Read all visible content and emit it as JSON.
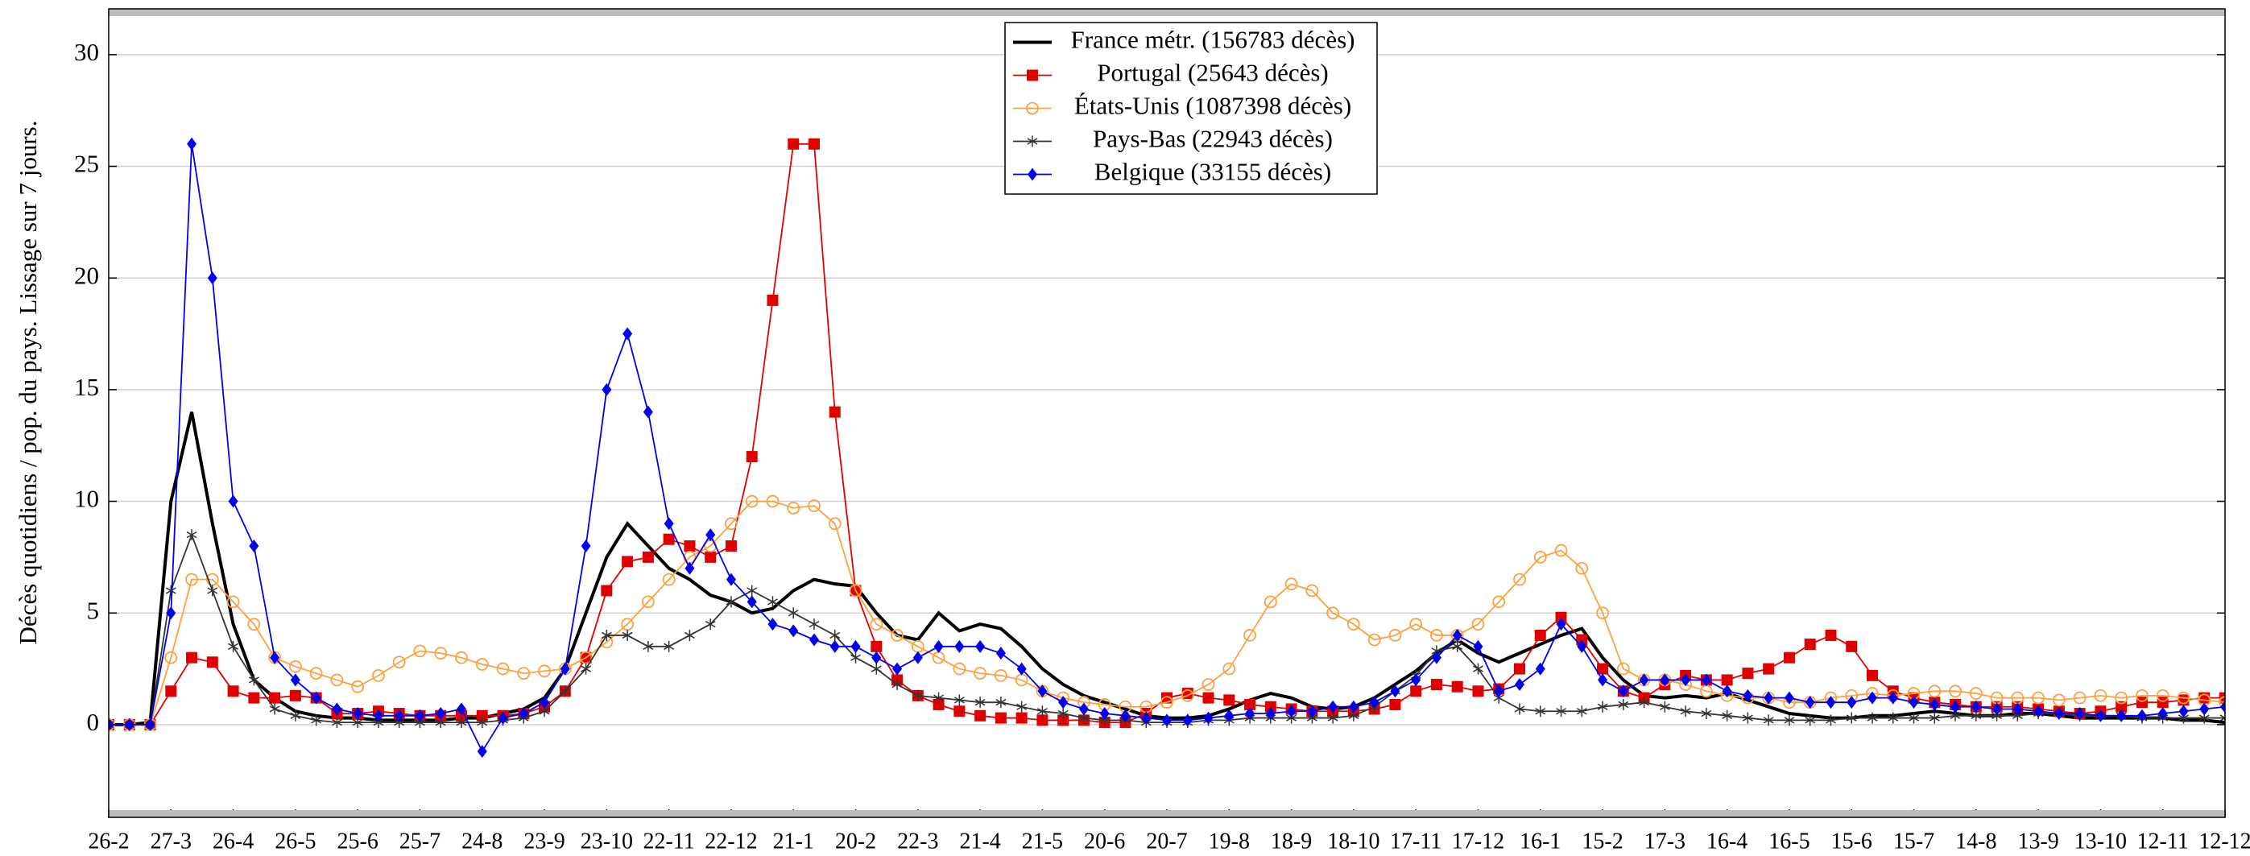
{
  "chart_data": {
    "type": "line",
    "y_label": "Décès quotidiens / pop. du pays. Lissage sur 7 jours.",
    "x": [
      0,
      10,
      20,
      30,
      40,
      50,
      60,
      70,
      80,
      90,
      100,
      110,
      120,
      130,
      140,
      150,
      160,
      170,
      180,
      190,
      200,
      210,
      220,
      230,
      240,
      250,
      260,
      270,
      280,
      290,
      300,
      310,
      320,
      330,
      340,
      350,
      360,
      370,
      380,
      390,
      400,
      410,
      420,
      430,
      440,
      450,
      460,
      470,
      480,
      490,
      500,
      510,
      520,
      530,
      540,
      550,
      560,
      570,
      580,
      590,
      600,
      610,
      620,
      630,
      640,
      650,
      660,
      670,
      680,
      690,
      700,
      710,
      720,
      730,
      740,
      750,
      760,
      770,
      780,
      790,
      800,
      810,
      820,
      830,
      840,
      850,
      860,
      870,
      880,
      890,
      900,
      910,
      920,
      930,
      940,
      950,
      960,
      970,
      980,
      990,
      1000,
      1010,
      1020
    ],
    "xlim": [
      0,
      1020
    ],
    "xticks": [
      {
        "value": 0,
        "label": "26-2"
      },
      {
        "value": 30,
        "label": "27-3"
      },
      {
        "value": 60,
        "label": "26-4"
      },
      {
        "value": 90,
        "label": "26-5"
      },
      {
        "value": 120,
        "label": "25-6"
      },
      {
        "value": 150,
        "label": "25-7"
      },
      {
        "value": 180,
        "label": "24-8"
      },
      {
        "value": 210,
        "label": "23-9"
      },
      {
        "value": 240,
        "label": "23-10"
      },
      {
        "value": 270,
        "label": "22-11"
      },
      {
        "value": 300,
        "label": "22-12"
      },
      {
        "value": 330,
        "label": "21-1"
      },
      {
        "value": 360,
        "label": "20-2"
      },
      {
        "value": 390,
        "label": "22-3"
      },
      {
        "value": 420,
        "label": "21-4"
      },
      {
        "value": 450,
        "label": "21-5"
      },
      {
        "value": 480,
        "label": "20-6"
      },
      {
        "value": 510,
        "label": "20-7"
      },
      {
        "value": 540,
        "label": "19-8"
      },
      {
        "value": 570,
        "label": "18-9"
      },
      {
        "value": 600,
        "label": "18-10"
      },
      {
        "value": 630,
        "label": "17-11"
      },
      {
        "value": 660,
        "label": "17-12"
      },
      {
        "value": 690,
        "label": "16-1"
      },
      {
        "value": 720,
        "label": "15-2"
      },
      {
        "value": 750,
        "label": "17-3"
      },
      {
        "value": 780,
        "label": "16-4"
      },
      {
        "value": 810,
        "label": "16-5"
      },
      {
        "value": 840,
        "label": "15-6"
      },
      {
        "value": 870,
        "label": "15-7"
      },
      {
        "value": 900,
        "label": "14-8"
      },
      {
        "value": 930,
        "label": "13-9"
      },
      {
        "value": 960,
        "label": "13-10"
      },
      {
        "value": 990,
        "label": "12-11"
      },
      {
        "value": 1020,
        "label": "12-12"
      }
    ],
    "ylim": [
      -4.15,
      32.05
    ],
    "yticks": [
      0,
      5,
      10,
      15,
      20,
      25,
      30
    ],
    "grid": true,
    "legend": "top-center",
    "series": [
      {
        "name": "France métr. (156783 décès)",
        "color": "#000000",
        "marker": "none",
        "values": [
          0,
          0,
          0.1,
          10,
          14,
          9,
          4.5,
          2,
          1.2,
          0.6,
          0.4,
          0.3,
          0.3,
          0.2,
          0.2,
          0.2,
          0.2,
          0.3,
          0.3,
          0.5,
          0.7,
          1.2,
          2.5,
          5,
          7.5,
          9,
          8,
          7,
          6.5,
          5.8,
          5.5,
          5,
          5.2,
          6,
          6.5,
          6.3,
          6.2,
          5,
          4,
          3.8,
          5,
          4.2,
          4.5,
          4.3,
          3.5,
          2.5,
          1.8,
          1.3,
          1,
          0.7,
          0.4,
          0.3,
          0.3,
          0.4,
          0.7,
          1.1,
          1.4,
          1.2,
          0.8,
          0.7,
          0.8,
          1.2,
          1.8,
          2.4,
          3.2,
          3.8,
          3.2,
          2.8,
          3.2,
          3.6,
          4,
          4.3,
          3,
          2,
          1.3,
          1.2,
          1.3,
          1.2,
          1.4,
          1.1,
          0.8,
          0.5,
          0.4,
          0.3,
          0.3,
          0.4,
          0.4,
          0.5,
          0.6,
          0.5,
          0.4,
          0.4,
          0.5,
          0.5,
          0.4,
          0.3,
          0.3,
          0.3,
          0.3,
          0.3,
          0.2,
          0.2,
          0.1
        ]
      },
      {
        "name": "Portugal (25643 décès)",
        "color": "#e00000",
        "marker": "square",
        "values": [
          0,
          0,
          0,
          1.5,
          3,
          2.8,
          1.5,
          1.2,
          1.2,
          1.3,
          1.2,
          0.5,
          0.5,
          0.6,
          0.5,
          0.4,
          0.4,
          0.4,
          0.4,
          0.4,
          0.5,
          0.8,
          1.5,
          3,
          6,
          7.3,
          7.5,
          8.3,
          8,
          7.5,
          8,
          12,
          19,
          26,
          26,
          14,
          6,
          3.5,
          2,
          1.3,
          0.9,
          0.6,
          0.4,
          0.3,
          0.3,
          0.2,
          0.2,
          0.2,
          0.1,
          0.1,
          0.5,
          1.2,
          1.4,
          1.2,
          1.1,
          0.9,
          0.8,
          0.7,
          0.6,
          0.6,
          0.6,
          0.7,
          0.9,
          1.5,
          1.8,
          1.7,
          1.5,
          1.6,
          2.5,
          4,
          4.8,
          3.8,
          2.5,
          1.5,
          1.2,
          1.8,
          2.2,
          2,
          2,
          2.3,
          2.5,
          3,
          3.6,
          4,
          3.5,
          2.2,
          1.5,
          1.2,
          1,
          0.9,
          0.8,
          0.8,
          0.8,
          0.7,
          0.6,
          0.5,
          0.6,
          0.8,
          1,
          1,
          1.1,
          1.2,
          1.2
        ]
      },
      {
        "name": "États-Unis (1087398 décès)",
        "color": "#ffa040",
        "marker": "circle",
        "values": [
          0,
          0,
          0,
          3,
          6.5,
          6.5,
          5.5,
          4.5,
          3,
          2.6,
          2.3,
          2,
          1.7,
          2.2,
          2.8,
          3.3,
          3.2,
          3,
          2.7,
          2.5,
          2.3,
          2.4,
          2.5,
          3,
          3.7,
          4.5,
          5.5,
          6.5,
          7.5,
          8,
          9,
          10,
          10,
          9.7,
          9.8,
          9,
          6,
          4.5,
          4,
          3.5,
          3,
          2.5,
          2.3,
          2.2,
          2,
          1.5,
          1.2,
          1,
          0.9,
          0.8,
          0.8,
          1,
          1.3,
          1.8,
          2.5,
          4,
          5.5,
          6.3,
          6,
          5,
          4.5,
          3.8,
          4,
          4.5,
          4,
          4,
          4.5,
          5.5,
          6.5,
          7.5,
          7.8,
          7,
          5,
          2.5,
          2,
          2,
          1.8,
          1.5,
          1.3,
          1.2,
          1.2,
          1,
          1,
          1.2,
          1.3,
          1.4,
          1.3,
          1.4,
          1.5,
          1.5,
          1.4,
          1.2,
          1.2,
          1.2,
          1.1,
          1.2,
          1.3,
          1.2,
          1.3,
          1.3,
          1.2,
          1.1,
          1
        ]
      },
      {
        "name": "Pays-Bas (22943 décès)",
        "color": "#333333",
        "marker": "star",
        "values": [
          0,
          0,
          0,
          6,
          8.5,
          6,
          3.5,
          2,
          0.7,
          0.4,
          0.2,
          0.1,
          0.1,
          0.1,
          0.1,
          0.1,
          0.1,
          0.1,
          0.1,
          0.2,
          0.3,
          0.6,
          1.5,
          2.5,
          4,
          4,
          3.5,
          3.5,
          4,
          4.5,
          5.5,
          6,
          5.5,
          5,
          4.5,
          4,
          3,
          2.5,
          1.8,
          1.3,
          1.2,
          1.1,
          1,
          1,
          0.8,
          0.6,
          0.5,
          0.3,
          0.2,
          0.2,
          0.1,
          0.1,
          0.1,
          0.2,
          0.2,
          0.3,
          0.3,
          0.3,
          0.3,
          0.3,
          0.4,
          0.8,
          1.5,
          2.2,
          3.3,
          3.5,
          2.5,
          1.2,
          0.7,
          0.6,
          0.6,
          0.6,
          0.8,
          0.9,
          1,
          0.8,
          0.6,
          0.5,
          0.4,
          0.3,
          0.2,
          0.2,
          0.2,
          0.2,
          0.3,
          0.3,
          0.3,
          0.3,
          0.3,
          0.4,
          0.4,
          0.4,
          0.4,
          0.5,
          0.5,
          0.4,
          0.4,
          0.4,
          0.3,
          0.3,
          0.3,
          0.3,
          0.3
        ]
      },
      {
        "name": "Belgique (33155 décès)",
        "color": "#0000ee",
        "marker": "diamond",
        "values": [
          0,
          0,
          0,
          5,
          26,
          20,
          10,
          8,
          3,
          2,
          1.2,
          0.7,
          0.5,
          0.4,
          0.4,
          0.4,
          0.5,
          0.7,
          -1.2,
          0.3,
          0.5,
          1,
          2.5,
          8,
          15,
          17.5,
          14,
          9,
          7,
          8.5,
          6.5,
          5.5,
          4.5,
          4.2,
          3.8,
          3.5,
          3.5,
          3,
          2.5,
          3,
          3.5,
          3.5,
          3.5,
          3.2,
          2.5,
          1.5,
          1,
          0.7,
          0.5,
          0.4,
          0.3,
          0.2,
          0.2,
          0.3,
          0.4,
          0.5,
          0.5,
          0.6,
          0.6,
          0.8,
          0.8,
          1,
          1.5,
          2,
          3,
          4,
          3.5,
          1.5,
          1.8,
          2.5,
          4.5,
          3.5,
          2,
          1.5,
          2,
          2,
          2,
          2,
          1.5,
          1.3,
          1.2,
          1.2,
          1,
          1,
          1,
          1.2,
          1.2,
          1,
          0.9,
          0.8,
          0.8,
          0.7,
          0.7,
          0.6,
          0.5,
          0.5,
          0.4,
          0.4,
          0.4,
          0.5,
          0.6,
          0.7,
          0.8
        ]
      }
    ]
  }
}
